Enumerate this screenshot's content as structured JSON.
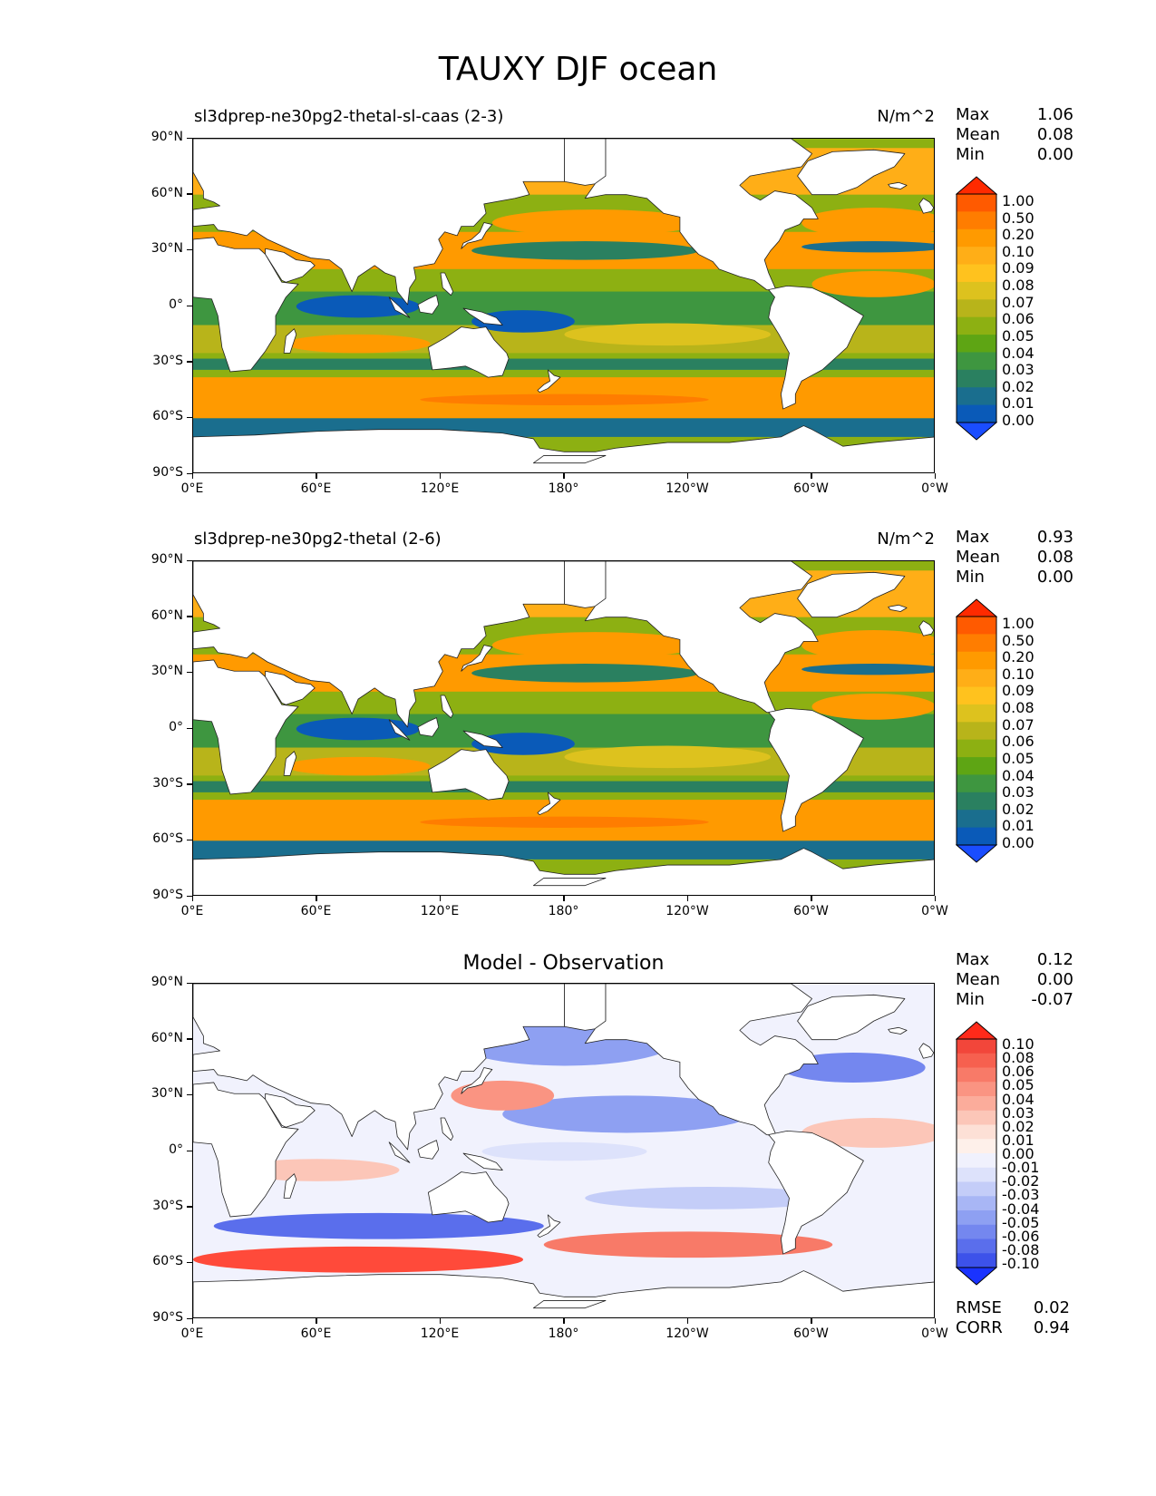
{
  "figure": {
    "title": "TAUXY DJF ocean",
    "x_ticks": [
      "0°E",
      "60°E",
      "120°E",
      "180°",
      "120°W",
      "60°W",
      "0°W"
    ],
    "y_ticks": [
      "90°N",
      "60°N",
      "30°N",
      "0°",
      "30°S",
      "60°S",
      "90°S"
    ]
  },
  "panels": [
    {
      "title_left": "sl3dprep-ne30pg2-thetal-sl-caas (2-3)",
      "units": "N/m^2",
      "stats": {
        "max_label": "Max",
        "max": "1.06",
        "mean_label": "Mean",
        "mean": "0.08",
        "min_label": "Min",
        "min": "0.00"
      },
      "colorbar": {
        "levels": [
          "1.00",
          "0.50",
          "0.20",
          "0.10",
          "0.09",
          "0.08",
          "0.07",
          "0.06",
          "0.05",
          "0.04",
          "0.03",
          "0.02",
          "0.01",
          "0.00"
        ],
        "colors": [
          "#ff2a00",
          "#ff5a00",
          "#ff7d00",
          "#ff9a00",
          "#ffae17",
          "#ffc21e",
          "#ddc21e",
          "#b8b41a",
          "#8db012",
          "#5ea514",
          "#3e9640",
          "#2a8060",
          "#1a6e8e",
          "#0a5ab8",
          "#1a4dff"
        ]
      }
    },
    {
      "title_left": "sl3dprep-ne30pg2-thetal (2-6)",
      "units": "N/m^2",
      "stats": {
        "max_label": "Max",
        "max": "0.93",
        "mean_label": "Mean",
        "mean": "0.08",
        "min_label": "Min",
        "min": "0.00"
      },
      "colorbar": {
        "levels": [
          "1.00",
          "0.50",
          "0.20",
          "0.10",
          "0.09",
          "0.08",
          "0.07",
          "0.06",
          "0.05",
          "0.04",
          "0.03",
          "0.02",
          "0.01",
          "0.00"
        ],
        "colors": [
          "#ff2a00",
          "#ff5a00",
          "#ff7d00",
          "#ff9a00",
          "#ffae17",
          "#ffc21e",
          "#ddc21e",
          "#b8b41a",
          "#8db012",
          "#5ea514",
          "#3e9640",
          "#2a8060",
          "#1a6e8e",
          "#0a5ab8",
          "#1a4dff"
        ]
      }
    },
    {
      "title_center": "Model - Observation",
      "stats": {
        "max_label": "Max",
        "max": "0.12",
        "mean_label": "Mean",
        "mean": "0.00",
        "min_label": "Min",
        "min": "-0.07"
      },
      "colorbar": {
        "levels": [
          "0.10",
          "0.08",
          "0.06",
          "0.05",
          "0.04",
          "0.03",
          "0.02",
          "0.01",
          "0.00",
          "-0.01",
          "-0.02",
          "-0.03",
          "-0.04",
          "-0.05",
          "-0.06",
          "-0.08",
          "-0.10"
        ],
        "colors": [
          "#ff2a1a",
          "#f2463a",
          "#f6604f",
          "#f87a68",
          "#fa9482",
          "#fbac9b",
          "#fcc6b8",
          "#fde0d6",
          "#fef0ea",
          "#f0f1fd",
          "#dde2fb",
          "#c4cdf8",
          "#a8b6f5",
          "#8ea0f2",
          "#7487ef",
          "#5a6eec",
          "#3d52ea",
          "#1a33ff"
        ]
      },
      "metrics": {
        "rmse_label": "RMSE",
        "rmse": "0.02",
        "corr_label": "CORR",
        "corr": "0.94"
      }
    }
  ]
}
